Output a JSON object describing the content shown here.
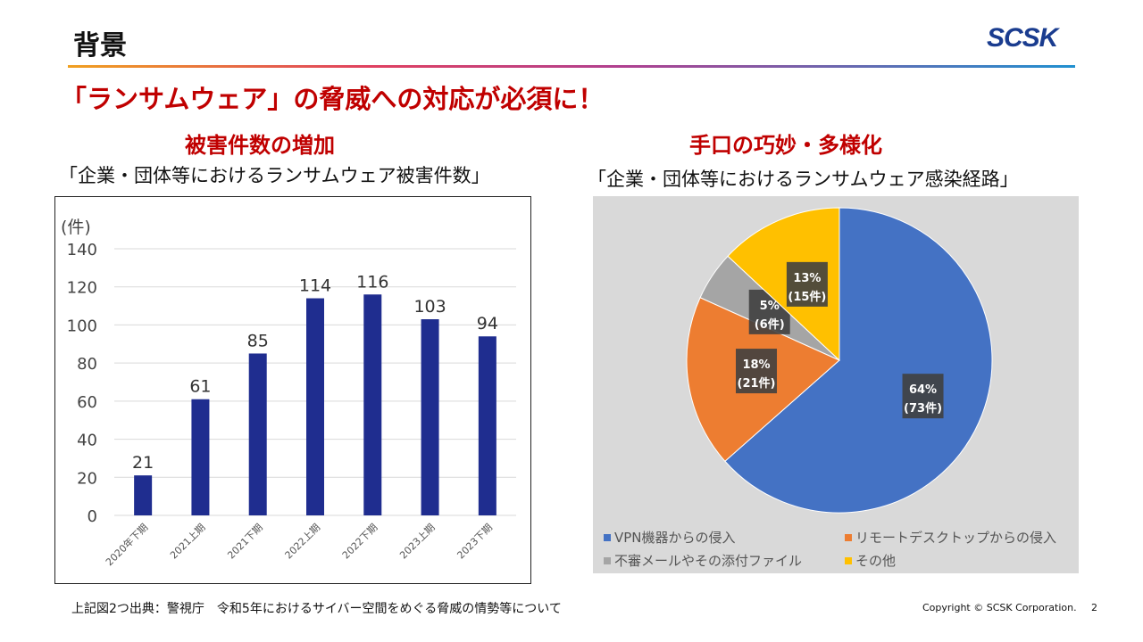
{
  "header": {
    "title": "背景",
    "logo": "SCSK"
  },
  "headline": "「ランサムウェア」の脅威への対応が必須に！",
  "left": {
    "heading": "被害件数の増加",
    "subtitle": "「企業・団体等におけるランサムウェア被害件数」"
  },
  "right": {
    "heading": "手口の巧妙・多様化",
    "subtitle": "「企業・団体等におけるランサムウェア感染経路」"
  },
  "chart_data": [
    {
      "type": "bar",
      "title": "「企業・団体等におけるランサムウェア被害件数」",
      "ylabel": "(件)",
      "xlabel": "",
      "categories": [
        "2020年下期",
        "2021上期",
        "2021下期",
        "2022上期",
        "2022下期",
        "2023上期",
        "2023下期"
      ],
      "values": [
        21,
        61,
        85,
        114,
        116,
        103,
        94
      ],
      "ylim": [
        0,
        140
      ],
      "yticks": [
        0,
        20,
        40,
        60,
        80,
        100,
        120,
        140
      ],
      "grid": true,
      "color": "#1f2d8f"
    },
    {
      "type": "pie",
      "title": "「企業・団体等におけるランサムウェア感染経路」",
      "labels": [
        "VPN機器からの侵入",
        "リモートデスクトップからの侵入",
        "不審メールやその添付ファイル",
        "その他"
      ],
      "values": [
        73,
        21,
        6,
        15
      ],
      "percent_labels": [
        "64%",
        "18%",
        "5%",
        "13%"
      ],
      "count_labels": [
        "(73件)",
        "(21件)",
        "(6件)",
        "(15件)"
      ],
      "colors": [
        "#4472c4",
        "#ed7d31",
        "#a5a5a5",
        "#ffc000"
      ],
      "legend_position": "bottom"
    }
  ],
  "footer": {
    "source": "上記図2つ出典：警視庁　令和5年におけるサイバー空間をめぐる脅威の情勢等について",
    "copyright": "Copyright © SCSK Corporation.",
    "page": "2"
  }
}
